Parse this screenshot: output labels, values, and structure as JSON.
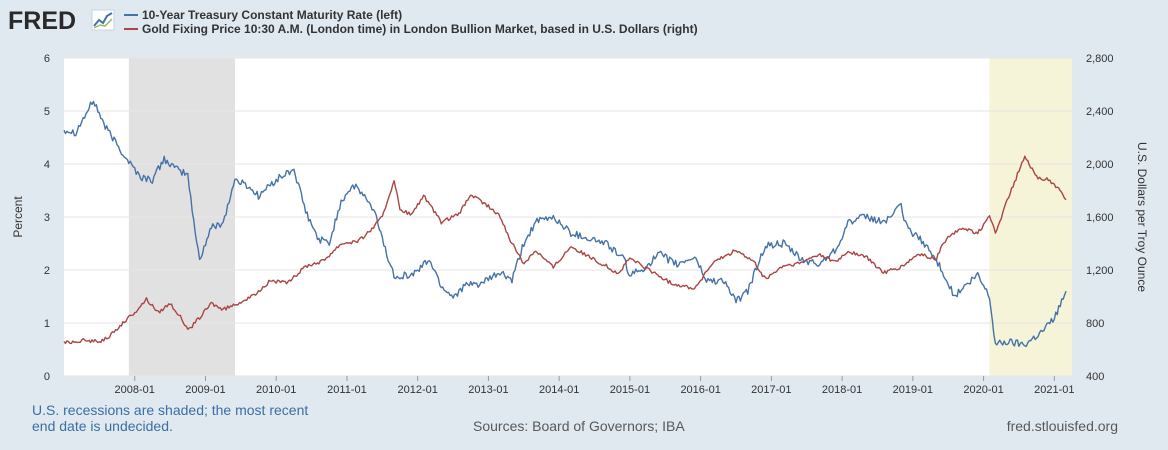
{
  "logo": {
    "text": "FRED"
  },
  "legend": [
    {
      "label": "10-Year Treasury Constant Maturity Rate (left)",
      "color": "#4572a7"
    },
    {
      "label": "Gold Fixing Price 10:30 A.M. (London time) in London Bullion Market, based in U.S. Dollars (right)",
      "color": "#aa4643"
    }
  ],
  "footer": {
    "recession_note_line1": "U.S. recessions are shaded; the most recent",
    "recession_note_line2": "end date is undecided.",
    "sources": "Sources: Board of Governors; IBA",
    "site": "fred.stlouisfed.org"
  },
  "chart_data": {
    "type": "line",
    "ylabel_left": "Percent",
    "ylabel_right": "U.S. Dollars per Troy Ounce",
    "ylim_left": [
      0,
      6
    ],
    "ylim_right": [
      400,
      2800
    ],
    "yticks_left": [
      "0",
      "1",
      "2",
      "3",
      "4",
      "5",
      "6"
    ],
    "yticks_right": [
      "400",
      "800",
      "1,200",
      "1,600",
      "2,000",
      "2,400",
      "2,800"
    ],
    "xlim": [
      "2007-01",
      "2021-04"
    ],
    "xticks": [
      "2008-01",
      "2009-01",
      "2010-01",
      "2011-01",
      "2012-01",
      "2013-01",
      "2014-01",
      "2015-01",
      "2016-01",
      "2017-01",
      "2018-01",
      "2019-01",
      "2020-01",
      "2021-01"
    ],
    "grid": true,
    "recessions": [
      {
        "start": "2007-12",
        "end": "2009-06",
        "color": "#e1e1e1"
      },
      {
        "start": "2020-02",
        "end": "2021-04",
        "color": "#f5f3d8"
      }
    ],
    "series": [
      {
        "name": "10-Year Treasury Constant Maturity Rate (left)",
        "axis": "left",
        "color": "#4572a7",
        "points": [
          [
            "2007-01",
            4.65
          ],
          [
            "2007-03",
            4.6
          ],
          [
            "2007-06",
            5.2
          ],
          [
            "2007-08",
            4.7
          ],
          [
            "2007-11",
            4.2
          ],
          [
            "2008-02",
            3.75
          ],
          [
            "2008-04",
            3.7
          ],
          [
            "2008-06",
            4.1
          ],
          [
            "2008-08",
            3.9
          ],
          [
            "2008-10",
            3.8
          ],
          [
            "2008-11",
            2.9
          ],
          [
            "2008-12",
            2.2
          ],
          [
            "2009-02",
            2.8
          ],
          [
            "2009-04",
            2.9
          ],
          [
            "2009-06",
            3.7
          ],
          [
            "2009-08",
            3.6
          ],
          [
            "2009-10",
            3.4
          ],
          [
            "2009-12",
            3.6
          ],
          [
            "2010-01",
            3.7
          ],
          [
            "2010-04",
            3.9
          ],
          [
            "2010-06",
            3.1
          ],
          [
            "2010-08",
            2.6
          ],
          [
            "2010-10",
            2.5
          ],
          [
            "2010-12",
            3.3
          ],
          [
            "2011-02",
            3.6
          ],
          [
            "2011-04",
            3.4
          ],
          [
            "2011-06",
            3.0
          ],
          [
            "2011-08",
            2.2
          ],
          [
            "2011-09",
            1.9
          ],
          [
            "2011-12",
            1.9
          ],
          [
            "2012-03",
            2.2
          ],
          [
            "2012-05",
            1.7
          ],
          [
            "2012-07",
            1.5
          ],
          [
            "2012-09",
            1.7
          ],
          [
            "2012-12",
            1.75
          ],
          [
            "2013-03",
            1.95
          ],
          [
            "2013-05",
            1.8
          ],
          [
            "2013-07",
            2.5
          ],
          [
            "2013-09",
            2.9
          ],
          [
            "2013-12",
            3.0
          ],
          [
            "2014-03",
            2.7
          ],
          [
            "2014-06",
            2.6
          ],
          [
            "2014-09",
            2.5
          ],
          [
            "2014-12",
            2.2
          ],
          [
            "2015-01",
            1.9
          ],
          [
            "2015-03",
            2.0
          ],
          [
            "2015-06",
            2.3
          ],
          [
            "2015-09",
            2.1
          ],
          [
            "2015-12",
            2.25
          ],
          [
            "2016-02",
            1.8
          ],
          [
            "2016-05",
            1.8
          ],
          [
            "2016-07",
            1.4
          ],
          [
            "2016-09",
            1.6
          ],
          [
            "2016-11",
            2.2
          ],
          [
            "2016-12",
            2.45
          ],
          [
            "2017-03",
            2.5
          ],
          [
            "2017-06",
            2.2
          ],
          [
            "2017-09",
            2.1
          ],
          [
            "2017-12",
            2.4
          ],
          [
            "2018-02",
            2.9
          ],
          [
            "2018-05",
            3.0
          ],
          [
            "2018-08",
            2.9
          ],
          [
            "2018-11",
            3.2
          ],
          [
            "2018-12",
            2.8
          ],
          [
            "2019-03",
            2.5
          ],
          [
            "2019-06",
            2.0
          ],
          [
            "2019-08",
            1.5
          ],
          [
            "2019-10",
            1.7
          ],
          [
            "2019-12",
            1.9
          ],
          [
            "2020-02",
            1.5
          ],
          [
            "2020-03",
            0.6
          ],
          [
            "2020-05",
            0.65
          ],
          [
            "2020-08",
            0.6
          ],
          [
            "2020-11",
            0.85
          ],
          [
            "2021-01",
            1.1
          ],
          [
            "2021-03",
            1.6
          ]
        ]
      },
      {
        "name": "Gold Fixing Price 10:30 A.M. (London time) in London Bullion Market, based in U.S. Dollars (right)",
        "axis": "right",
        "color": "#aa4643",
        "points": [
          [
            "2007-01",
            650
          ],
          [
            "2007-04",
            670
          ],
          [
            "2007-07",
            660
          ],
          [
            "2007-09",
            710
          ],
          [
            "2007-11",
            800
          ],
          [
            "2008-01",
            880
          ],
          [
            "2008-03",
            980
          ],
          [
            "2008-05",
            880
          ],
          [
            "2008-07",
            950
          ],
          [
            "2008-09",
            830
          ],
          [
            "2008-10",
            740
          ],
          [
            "2008-12",
            840
          ],
          [
            "2009-02",
            950
          ],
          [
            "2009-04",
            900
          ],
          [
            "2009-06",
            940
          ],
          [
            "2009-09",
            1000
          ],
          [
            "2009-12",
            1120
          ],
          [
            "2010-03",
            1100
          ],
          [
            "2010-06",
            1230
          ],
          [
            "2010-09",
            1270
          ],
          [
            "2010-12",
            1400
          ],
          [
            "2011-03",
            1420
          ],
          [
            "2011-05",
            1500
          ],
          [
            "2011-07",
            1600
          ],
          [
            "2011-09",
            1880
          ],
          [
            "2011-10",
            1650
          ],
          [
            "2011-12",
            1620
          ],
          [
            "2012-02",
            1760
          ],
          [
            "2012-05",
            1560
          ],
          [
            "2012-08",
            1620
          ],
          [
            "2012-10",
            1770
          ],
          [
            "2013-01",
            1680
          ],
          [
            "2013-03",
            1600
          ],
          [
            "2013-05",
            1400
          ],
          [
            "2013-07",
            1250
          ],
          [
            "2013-09",
            1350
          ],
          [
            "2013-12",
            1220
          ],
          [
            "2014-03",
            1380
          ],
          [
            "2014-06",
            1300
          ],
          [
            "2014-09",
            1230
          ],
          [
            "2014-11",
            1170
          ],
          [
            "2015-01",
            1290
          ],
          [
            "2015-05",
            1180
          ],
          [
            "2015-08",
            1100
          ],
          [
            "2015-12",
            1060
          ],
          [
            "2016-03",
            1250
          ],
          [
            "2016-07",
            1350
          ],
          [
            "2016-10",
            1260
          ],
          [
            "2016-12",
            1130
          ],
          [
            "2017-03",
            1230
          ],
          [
            "2017-06",
            1250
          ],
          [
            "2017-09",
            1320
          ],
          [
            "2017-12",
            1260
          ],
          [
            "2018-02",
            1340
          ],
          [
            "2018-05",
            1300
          ],
          [
            "2018-08",
            1180
          ],
          [
            "2018-11",
            1220
          ],
          [
            "2019-02",
            1320
          ],
          [
            "2019-05",
            1280
          ],
          [
            "2019-06",
            1400
          ],
          [
            "2019-09",
            1520
          ],
          [
            "2019-12",
            1480
          ],
          [
            "2020-02",
            1600
          ],
          [
            "2020-03",
            1480
          ],
          [
            "2020-05",
            1720
          ],
          [
            "2020-07",
            1950
          ],
          [
            "2020-08",
            2050
          ],
          [
            "2020-10",
            1900
          ],
          [
            "2020-12",
            1880
          ],
          [
            "2021-02",
            1800
          ],
          [
            "2021-03",
            1730
          ]
        ]
      }
    ]
  }
}
